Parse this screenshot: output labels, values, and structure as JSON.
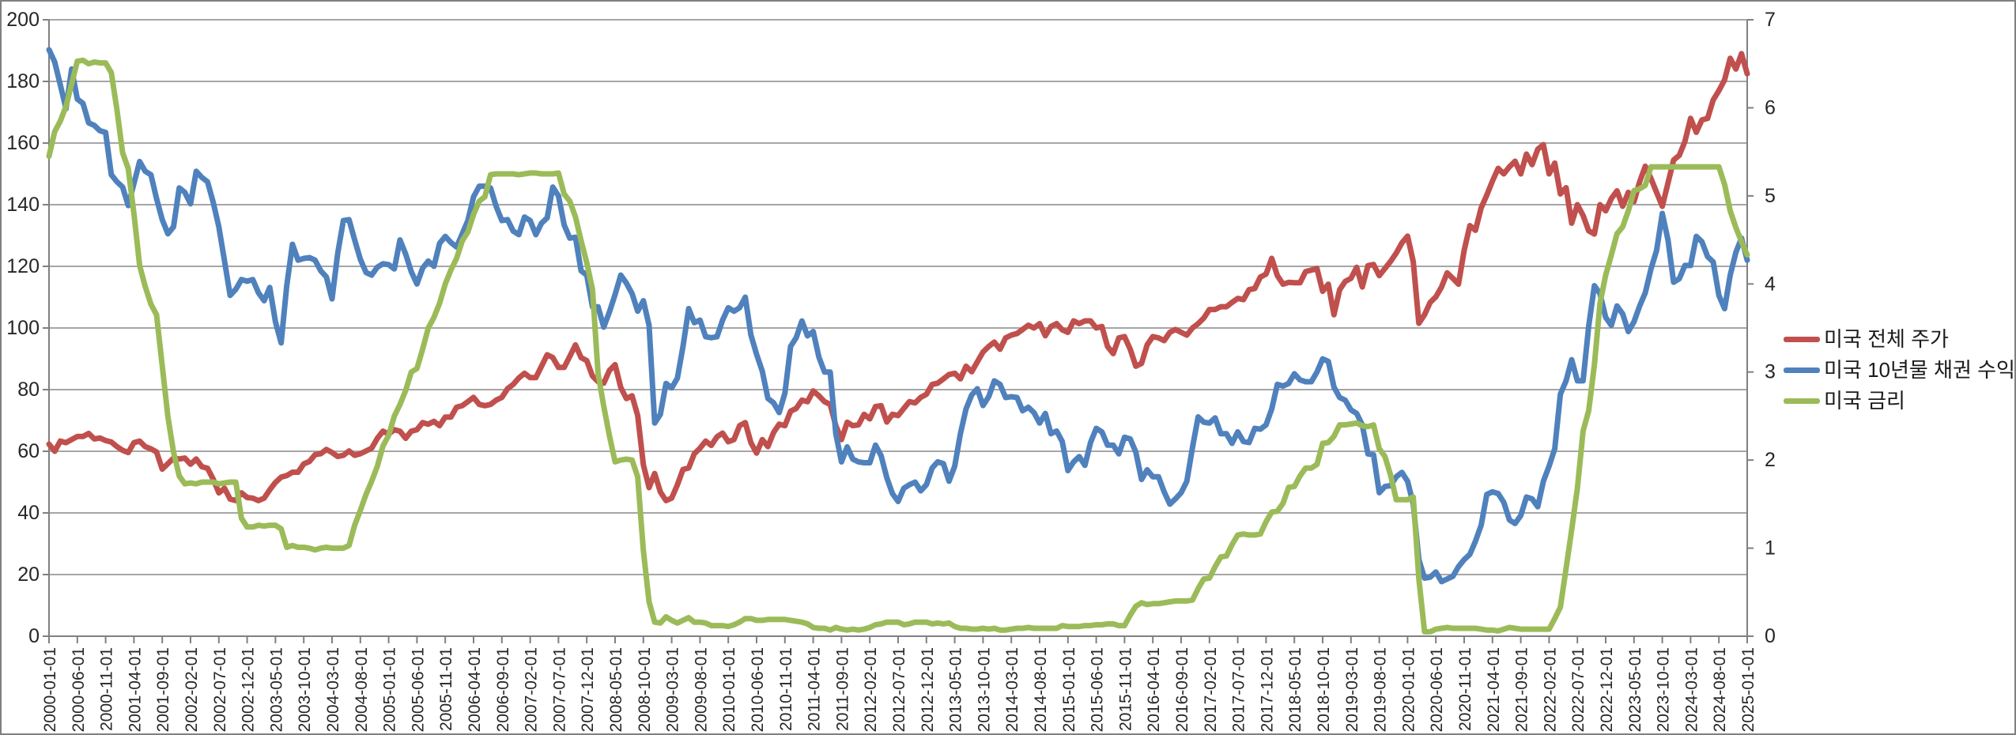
{
  "chart_data": {
    "type": "line",
    "title": "",
    "xlabel": "",
    "ylabel_left": "",
    "ylabel_right": "",
    "grid": "horizontal",
    "legend_position": "right",
    "x_start": "2000-01-01",
    "x_end": "2025-01-01",
    "x_interval": "monthly",
    "x_tick_every_n_months": 5,
    "x_tick_labels": [
      "2000-01-01",
      "2000-06-01",
      "2000-11-01",
      "2001-04-01",
      "2001-09-01",
      "2002-02-01",
      "2002-07-01",
      "2002-12-01",
      "2003-05-01",
      "2003-10-01",
      "2004-03-01",
      "2004-08-01",
      "2005-01-01",
      "2005-06-01",
      "2005-11-01",
      "2006-04-01",
      "2006-09-01",
      "2007-02-01",
      "2007-07-01",
      "2007-12-01",
      "2008-05-01",
      "2008-10-01",
      "2009-03-01",
      "2009-08-01",
      "2010-01-01",
      "2010-06-01",
      "2010-11-01",
      "2011-04-01",
      "2011-09-01",
      "2012-02-01",
      "2012-07-01",
      "2012-12-01",
      "2013-05-01",
      "2013-10-01",
      "2014-03-01",
      "2014-08-01",
      "2015-01-01",
      "2015-06-01",
      "2015-11-01",
      "2016-04-01",
      "2016-09-01",
      "2017-02-01",
      "2017-07-01",
      "2017-12-01",
      "2018-05-01",
      "2018-10-01",
      "2019-03-01",
      "2019-08-01",
      "2020-01-01",
      "2020-06-01",
      "2020-11-01",
      "2021-04-01",
      "2021-09-01",
      "2022-02-01",
      "2022-07-01",
      "2022-12-01",
      "2023-05-01",
      "2023-10-01",
      "2024-03-01",
      "2024-08-01",
      "2025-01-01"
    ],
    "left_axis": {
      "min": 0,
      "max": 200,
      "step": 20,
      "labels": [
        "0",
        "20",
        "40",
        "60",
        "80",
        "100",
        "120",
        "140",
        "160",
        "180",
        "200"
      ]
    },
    "right_axis": {
      "min": 0,
      "max": 7,
      "step": 1,
      "labels": [
        "0",
        "1",
        "2",
        "3",
        "4",
        "5",
        "6",
        "7"
      ]
    },
    "series": [
      {
        "name": "미국 전체 주가",
        "axis": "left",
        "color": "#C0504D",
        "values": [
          62.3,
          60.0,
          63.3,
          62.8,
          63.8,
          64.8,
          64.8,
          65.8,
          64.0,
          64.3,
          63.5,
          63.0,
          61.5,
          60.3,
          59.6,
          62.8,
          63.3,
          61.5,
          60.8,
          59.8,
          54.2,
          56.0,
          57.8,
          57.5,
          57.8,
          55.8,
          57.5,
          55.0,
          54.5,
          51.0,
          46.5,
          48.0,
          44.5,
          44.0,
          46.5,
          45.0,
          44.8,
          44.0,
          44.8,
          47.5,
          49.9,
          51.6,
          52.1,
          53.2,
          53.2,
          55.9,
          56.7,
          58.9,
          59.2,
          60.6,
          59.6,
          58.3,
          58.7,
          60.1,
          58.7,
          59.2,
          60.1,
          61.0,
          64.2,
          66.5,
          65.6,
          67.0,
          66.5,
          64.2,
          66.5,
          67.0,
          69.3,
          68.8,
          69.7,
          68.3,
          71.1,
          71.1,
          74.3,
          74.8,
          76.1,
          77.5,
          75.2,
          74.8,
          75.2,
          76.6,
          77.5,
          80.3,
          81.7,
          83.8,
          85.3,
          83.9,
          83.9,
          87.6,
          91.3,
          90.4,
          87.2,
          87.2,
          90.8,
          94.5,
          90.4,
          89.4,
          84.4,
          82.6,
          82.1,
          86.2,
          88.1,
          80.7,
          77.1,
          78.0,
          71.6,
          55.6,
          48.2,
          52.8,
          46.8,
          44.0,
          44.8,
          49.1,
          54.1,
          54.6,
          59.2,
          61.0,
          63.3,
          61.9,
          64.7,
          65.9,
          63.1,
          63.8,
          68.3,
          69.3,
          62.8,
          59.4,
          63.8,
          61.5,
          66.1,
          68.8,
          68.3,
          73.0,
          73.9,
          76.6,
          76.1,
          79.6,
          78.0,
          76.1,
          75.2,
          68.3,
          63.8,
          69.4,
          68.3,
          68.6,
          72.0,
          70.5,
          74.5,
          74.8,
          69.5,
          72.0,
          71.6,
          73.9,
          76.1,
          75.7,
          77.5,
          78.5,
          81.7,
          82.1,
          83.5,
          84.9,
          85.3,
          83.5,
          87.6,
          85.8,
          89.0,
          92.2,
          94.0,
          95.4,
          93.1,
          96.8,
          97.7,
          98.2,
          99.5,
          100.9,
          100.0,
          101.4,
          97.5,
          100.5,
          101.4,
          99.4,
          98.6,
          102.3,
          101.4,
          102.3,
          102.3,
          100.0,
          100.5,
          94.0,
          91.7,
          96.8,
          97.2,
          93.1,
          87.6,
          88.5,
          94.5,
          97.2,
          96.8,
          95.9,
          98.6,
          99.5,
          98.6,
          97.7,
          100.0,
          101.4,
          103.2,
          106.0,
          106.0,
          106.9,
          106.9,
          108.3,
          109.6,
          109.2,
          112.4,
          112.8,
          116.5,
          117.5,
          122.6,
          117.0,
          114.2,
          114.8,
          114.7,
          114.7,
          118.3,
          118.8,
          119.3,
          111.9,
          114.2,
          104.3,
          112.4,
          115.1,
          116.1,
          119.7,
          113.3,
          120.2,
          120.6,
          117.0,
          119.3,
          121.6,
          124.3,
          127.6,
          129.8,
          121.5,
          101.5,
          104.3,
          108.3,
          110.1,
          113.3,
          117.9,
          116.1,
          114.2,
          125.2,
          133.2,
          131.7,
          139.0,
          143.1,
          147.7,
          151.8,
          150.0,
          152.3,
          154.1,
          150.0,
          156.4,
          153.0,
          158.0,
          159.5,
          150.0,
          153.5,
          143.5,
          145.5,
          134.0,
          140.0,
          136.5,
          131.5,
          130.5,
          140.0,
          138.0,
          142.0,
          144.5,
          139.5,
          144.0,
          141.0,
          147.5,
          152.5,
          148.5,
          144.0,
          139.5,
          147.0,
          154.5,
          156.0,
          160.5,
          168.0,
          163.5,
          167.5,
          168.0,
          174.0,
          177.0,
          180.5,
          187.5,
          184.0,
          189.0,
          182.5
        ]
      },
      {
        "name": "미국 10년물 채권 수익률",
        "axis": "right",
        "color": "#4F81BD",
        "values": [
          6.66,
          6.52,
          6.26,
          5.99,
          6.44,
          6.1,
          6.05,
          5.83,
          5.8,
          5.74,
          5.72,
          5.24,
          5.16,
          5.1,
          4.89,
          5.14,
          5.39,
          5.28,
          5.24,
          4.97,
          4.73,
          4.57,
          4.65,
          5.09,
          5.04,
          4.91,
          5.28,
          5.21,
          5.16,
          4.93,
          4.65,
          4.26,
          3.87,
          3.94,
          4.05,
          4.03,
          4.05,
          3.9,
          3.81,
          3.96,
          3.57,
          3.33,
          3.98,
          4.45,
          4.27,
          4.29,
          4.3,
          4.27,
          4.15,
          4.08,
          3.83,
          4.35,
          4.72,
          4.73,
          4.5,
          4.28,
          4.13,
          4.1,
          4.19,
          4.23,
          4.22,
          4.17,
          4.5,
          4.34,
          4.14,
          4.0,
          4.18,
          4.26,
          4.2,
          4.46,
          4.54,
          4.47,
          4.42,
          4.57,
          4.72,
          4.99,
          5.11,
          5.11,
          5.09,
          4.88,
          4.72,
          4.73,
          4.6,
          4.56,
          4.76,
          4.72,
          4.56,
          4.69,
          4.75,
          5.1,
          5.0,
          4.67,
          4.52,
          4.53,
          4.15,
          4.1,
          3.74,
          3.74,
          3.51,
          3.68,
          3.88,
          4.1,
          4.01,
          3.89,
          3.69,
          3.81,
          3.53,
          2.42,
          2.52,
          2.87,
          2.82,
          2.93,
          3.29,
          3.72,
          3.56,
          3.59,
          3.4,
          3.39,
          3.4,
          3.59,
          3.73,
          3.69,
          3.73,
          3.85,
          3.42,
          3.2,
          3.01,
          2.7,
          2.65,
          2.54,
          2.76,
          3.29,
          3.39,
          3.58,
          3.41,
          3.46,
          3.17,
          3.0,
          3.0,
          2.3,
          1.98,
          2.15,
          2.01,
          1.98,
          1.97,
          1.97,
          2.17,
          2.05,
          1.8,
          1.62,
          1.53,
          1.68,
          1.72,
          1.75,
          1.65,
          1.72,
          1.91,
          1.98,
          1.96,
          1.76,
          1.93,
          2.3,
          2.58,
          2.74,
          2.81,
          2.62,
          2.72,
          2.9,
          2.86,
          2.71,
          2.72,
          2.71,
          2.56,
          2.6,
          2.54,
          2.42,
          2.53,
          2.3,
          2.33,
          2.21,
          1.88,
          1.98,
          2.04,
          1.94,
          2.2,
          2.36,
          2.32,
          2.17,
          2.17,
          2.07,
          2.26,
          2.24,
          2.09,
          1.78,
          1.89,
          1.81,
          1.81,
          1.64,
          1.5,
          1.56,
          1.63,
          1.76,
          2.14,
          2.49,
          2.43,
          2.42,
          2.48,
          2.3,
          2.3,
          2.19,
          2.32,
          2.21,
          2.2,
          2.36,
          2.35,
          2.4,
          2.58,
          2.86,
          2.84,
          2.87,
          2.98,
          2.91,
          2.89,
          2.89,
          3.0,
          3.15,
          3.12,
          2.83,
          2.71,
          2.68,
          2.57,
          2.53,
          2.4,
          2.07,
          2.06,
          1.63,
          1.7,
          1.71,
          1.81,
          1.86,
          1.76,
          1.5,
          0.87,
          0.66,
          0.67,
          0.73,
          0.62,
          0.65,
          0.68,
          0.79,
          0.87,
          0.93,
          1.08,
          1.26,
          1.61,
          1.64,
          1.62,
          1.52,
          1.32,
          1.28,
          1.37,
          1.58,
          1.56,
          1.47,
          1.76,
          1.93,
          2.13,
          2.75,
          2.9,
          3.14,
          2.9,
          2.9,
          3.52,
          3.98,
          3.89,
          3.62,
          3.53,
          3.75,
          3.66,
          3.46,
          3.57,
          3.75,
          3.9,
          4.17,
          4.38,
          4.8,
          4.5,
          4.02,
          4.06,
          4.21,
          4.21,
          4.54,
          4.48,
          4.31,
          4.25,
          3.87,
          3.72,
          4.1,
          4.36,
          4.52,
          4.27
        ]
      },
      {
        "name": "미국 금리",
        "axis": "right",
        "color": "#9BBB59",
        "values": [
          5.45,
          5.73,
          5.85,
          6.02,
          6.27,
          6.53,
          6.54,
          6.5,
          6.52,
          6.51,
          6.51,
          6.4,
          5.98,
          5.49,
          5.31,
          4.8,
          4.21,
          3.97,
          3.77,
          3.65,
          3.07,
          2.49,
          2.09,
          1.82,
          1.73,
          1.74,
          1.73,
          1.75,
          1.75,
          1.75,
          1.73,
          1.74,
          1.75,
          1.75,
          1.34,
          1.24,
          1.24,
          1.26,
          1.25,
          1.26,
          1.26,
          1.22,
          1.01,
          1.03,
          1.01,
          1.01,
          1.0,
          0.98,
          1.0,
          1.01,
          1.0,
          1.0,
          1.0,
          1.03,
          1.26,
          1.43,
          1.61,
          1.76,
          1.93,
          2.16,
          2.28,
          2.5,
          2.63,
          2.79,
          3.0,
          3.04,
          3.26,
          3.5,
          3.62,
          3.78,
          4.0,
          4.16,
          4.29,
          4.49,
          4.59,
          4.79,
          4.94,
          4.99,
          5.24,
          5.25,
          5.25,
          5.25,
          5.25,
          5.24,
          5.25,
          5.26,
          5.26,
          5.25,
          5.25,
          5.25,
          5.26,
          5.02,
          4.94,
          4.76,
          4.49,
          4.24,
          3.94,
          2.98,
          2.61,
          2.28,
          1.98,
          2.0,
          2.01,
          2.0,
          1.81,
          0.97,
          0.39,
          0.16,
          0.15,
          0.22,
          0.18,
          0.15,
          0.18,
          0.21,
          0.16,
          0.16,
          0.15,
          0.12,
          0.12,
          0.12,
          0.11,
          0.13,
          0.16,
          0.2,
          0.2,
          0.18,
          0.18,
          0.19,
          0.19,
          0.19,
          0.19,
          0.18,
          0.17,
          0.16,
          0.14,
          0.1,
          0.09,
          0.09,
          0.07,
          0.1,
          0.08,
          0.07,
          0.08,
          0.07,
          0.08,
          0.1,
          0.13,
          0.14,
          0.16,
          0.16,
          0.16,
          0.13,
          0.14,
          0.16,
          0.16,
          0.16,
          0.14,
          0.15,
          0.14,
          0.15,
          0.11,
          0.09,
          0.09,
          0.08,
          0.08,
          0.09,
          0.08,
          0.09,
          0.07,
          0.07,
          0.08,
          0.09,
          0.09,
          0.1,
          0.09,
          0.09,
          0.09,
          0.09,
          0.09,
          0.12,
          0.11,
          0.11,
          0.11,
          0.12,
          0.12,
          0.13,
          0.13,
          0.14,
          0.14,
          0.12,
          0.12,
          0.24,
          0.34,
          0.38,
          0.36,
          0.37,
          0.37,
          0.38,
          0.39,
          0.4,
          0.4,
          0.4,
          0.41,
          0.54,
          0.65,
          0.66,
          0.79,
          0.9,
          0.91,
          1.04,
          1.15,
          1.16,
          1.15,
          1.15,
          1.16,
          1.3,
          1.41,
          1.42,
          1.51,
          1.69,
          1.7,
          1.82,
          1.91,
          1.91,
          1.95,
          2.19,
          2.2,
          2.27,
          2.4,
          2.4,
          2.41,
          2.42,
          2.39,
          2.38,
          2.4,
          2.13,
          2.04,
          1.83,
          1.55,
          1.55,
          1.55,
          1.58,
          0.65,
          0.05,
          0.05,
          0.08,
          0.09,
          0.1,
          0.09,
          0.09,
          0.09,
          0.09,
          0.09,
          0.08,
          0.07,
          0.07,
          0.06,
          0.08,
          0.1,
          0.09,
          0.08,
          0.08,
          0.08,
          0.08,
          0.08,
          0.08,
          0.2,
          0.33,
          0.77,
          1.21,
          1.68,
          2.33,
          2.56,
          3.08,
          3.78,
          4.1,
          4.33,
          4.57,
          4.65,
          4.83,
          5.06,
          5.08,
          5.12,
          5.33,
          5.33,
          5.33,
          5.33,
          5.33,
          5.33,
          5.33,
          5.33,
          5.33,
          5.33,
          5.33,
          5.33,
          5.33,
          5.13,
          4.83,
          4.64,
          4.48,
          4.33
        ]
      }
    ]
  },
  "legend": {
    "items": [
      {
        "label": "미국 전체 주가",
        "color": "#C0504D"
      },
      {
        "label": "미국 10년물 채권 수익률",
        "color": "#4F81BD"
      },
      {
        "label": "미국 금리",
        "color": "#9BBB59"
      }
    ]
  },
  "colors": {
    "grid": "#A6A6A6",
    "axis": "#808080",
    "tick_text": "#262626",
    "border": "#808080",
    "background": "#FFFFFF"
  }
}
